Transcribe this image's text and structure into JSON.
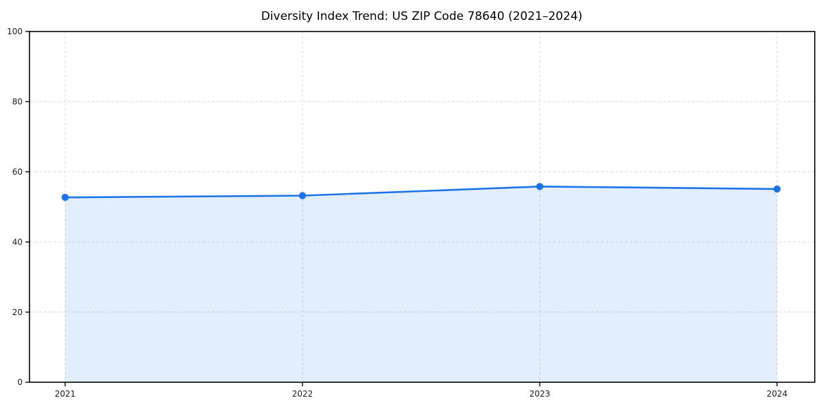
{
  "chart_data": {
    "type": "area",
    "title": "Diversity Index Trend: US ZIP Code 78640 (2021–2024)",
    "xlabel": "",
    "ylabel": "",
    "x": [
      2021,
      2022,
      2023,
      2024
    ],
    "x_tick_labels": [
      "2021",
      "2022",
      "2023",
      "2024"
    ],
    "series": [
      {
        "name": "Diversity Index",
        "values": [
          52.7,
          53.2,
          55.8,
          55.1
        ]
      }
    ],
    "ylim": [
      0,
      100
    ],
    "yticks": [
      0,
      20,
      40,
      60,
      80,
      100
    ],
    "grid": true,
    "grid_style": "dashed",
    "legend_position": "none",
    "colors": {
      "line": "#1a73e8",
      "marker": "#1a73e8",
      "fill": "#1a73e8",
      "fill_opacity": 0.12,
      "grid": "#d9d9d9",
      "axis": "#000000",
      "tick_label": "#1a1a1a",
      "background": "#ffffff"
    }
  }
}
